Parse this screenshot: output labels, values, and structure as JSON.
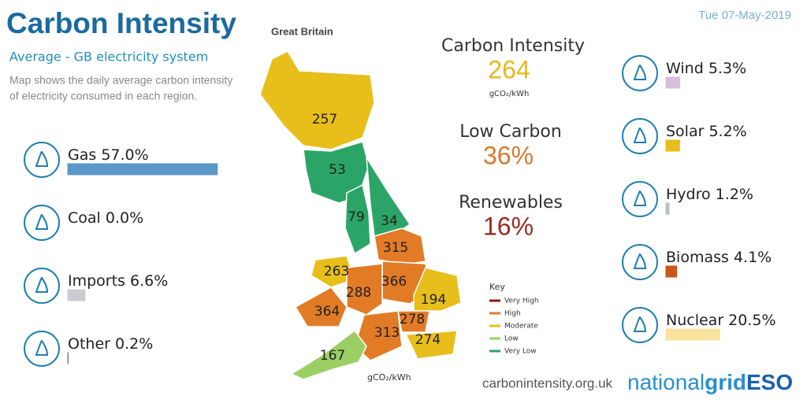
{
  "header": {
    "title": "Carbon Intensity",
    "region": "Great Britain",
    "date": "Tue 07-May-2019",
    "subtitle": "Average - GB electricity system",
    "description": [
      "Map shows the daily average carbon intensity",
      "of electricity consumed in each region."
    ]
  },
  "fuels_left": [
    {
      "name": "Gas",
      "value": 57.0,
      "label": "57.0%",
      "color": "#5b97c9"
    },
    {
      "name": "Coal",
      "value": 0.0,
      "label": "0.0%",
      "color": "#555555"
    },
    {
      "name": "Imports",
      "value": 6.6,
      "label": "6.6%",
      "color": "#c9cdd1"
    },
    {
      "name": "Other",
      "value": 0.2,
      "label": "0.2%",
      "color": "#888888"
    }
  ],
  "fuels_right": [
    {
      "name": "Wind",
      "value": 5.3,
      "label": "5.3%",
      "color": "#d8c0dc"
    },
    {
      "name": "Solar",
      "value": 5.2,
      "label": "5.2%",
      "color": "#e8be1a"
    },
    {
      "name": "Hydro",
      "value": 1.2,
      "label": "1.2%",
      "color": "#b8bec4"
    },
    {
      "name": "Biomass",
      "value": 4.1,
      "label": "4.1%",
      "color": "#c9561a"
    },
    {
      "name": "Nuclear",
      "value": 20.5,
      "label": "20.5%",
      "color": "#f8e29c"
    }
  ],
  "stats": [
    {
      "label": "Carbon Intensity",
      "value": "264",
      "unit": "gCO₂/kWh",
      "color": "#e8b81a"
    },
    {
      "label": "Low Carbon",
      "value": "36%",
      "color": "#d9782a"
    },
    {
      "label": "Renewables",
      "value": "16%",
      "color": "#9b2a1e"
    }
  ],
  "map": {
    "regions": [
      {
        "value": 257,
        "color": "#e8be1a"
      },
      {
        "value": 53,
        "color": "#2ba567"
      },
      {
        "value": 79,
        "color": "#2ba567"
      },
      {
        "value": 34,
        "color": "#2ba567"
      },
      {
        "value": 315,
        "color": "#e27b26"
      },
      {
        "value": 263,
        "color": "#e8be1a"
      },
      {
        "value": 366,
        "color": "#e27b26"
      },
      {
        "value": 288,
        "color": "#e27b26"
      },
      {
        "value": 364,
        "color": "#e27b26"
      },
      {
        "value": 194,
        "color": "#e8be1a"
      },
      {
        "value": 278,
        "color": "#e27b26"
      },
      {
        "value": 313,
        "color": "#e27b26"
      },
      {
        "value": 274,
        "color": "#e8be1a"
      },
      {
        "value": 167,
        "color": "#9bcf63"
      }
    ],
    "key_title": "Key",
    "key": [
      {
        "label": "Very High",
        "color": "#8b1a1a"
      },
      {
        "label": "High",
        "color": "#e27b26"
      },
      {
        "label": "Moderate",
        "color": "#e8be1a"
      },
      {
        "label": "Low",
        "color": "#9bcf63"
      },
      {
        "label": "Very Low",
        "color": "#2ba567"
      }
    ],
    "unit": "gCO₂/kWh"
  },
  "footer": {
    "url": "carbonintensity.org.uk",
    "logo": [
      "national",
      "grid",
      "ESO"
    ]
  }
}
